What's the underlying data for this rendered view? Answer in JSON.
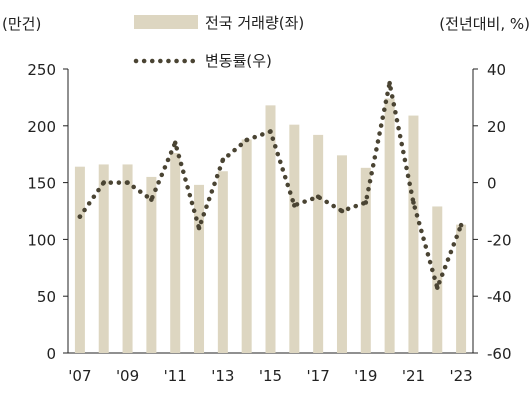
{
  "chart_data": {
    "type": "bar",
    "left_unit_label": "(만건)",
    "right_unit_label": "(전년대비, %)",
    "categories": [
      "2007",
      "2008",
      "2009",
      "2010",
      "2011",
      "2012",
      "2013",
      "2014",
      "2015",
      "2016",
      "2017",
      "2018",
      "2019",
      "2020",
      "2021",
      "2022",
      "2023"
    ],
    "x_tick_labels": [
      "'07",
      "'09",
      "'11",
      "'13",
      "'15",
      "'17",
      "'19",
      "'21",
      "'23"
    ],
    "x_tick_categories": [
      "2007",
      "2009",
      "2011",
      "2013",
      "2015",
      "2017",
      "2019",
      "2021",
      "2023"
    ],
    "left_axis": {
      "ylim": [
        0,
        250
      ],
      "ticks": [
        "0",
        "50",
        "100",
        "150",
        "200",
        "250"
      ]
    },
    "right_axis": {
      "ylim": [
        -60,
        40
      ],
      "ticks": [
        "-60",
        "-40",
        "-20",
        "0",
        "20",
        "40"
      ]
    },
    "series": [
      {
        "name": "전국 거래량(좌)",
        "type": "bar",
        "axis": "left",
        "color": "#ddd6c1",
        "values": [
          164,
          166,
          166,
          155,
          176,
          148,
          160,
          188,
          218,
          201,
          192,
          174,
          163,
          224,
          209,
          129,
          113
        ]
      },
      {
        "name": "변동률(우)",
        "type": "line",
        "style": "dotted",
        "axis": "right",
        "color": "#4a4433",
        "values": [
          -12,
          0,
          0,
          -6,
          14,
          -16,
          8,
          15,
          18,
          -8,
          -5,
          -10,
          -7,
          35,
          -7,
          -37,
          -15
        ]
      }
    ],
    "legend_position": "top-center",
    "grid": false
  }
}
